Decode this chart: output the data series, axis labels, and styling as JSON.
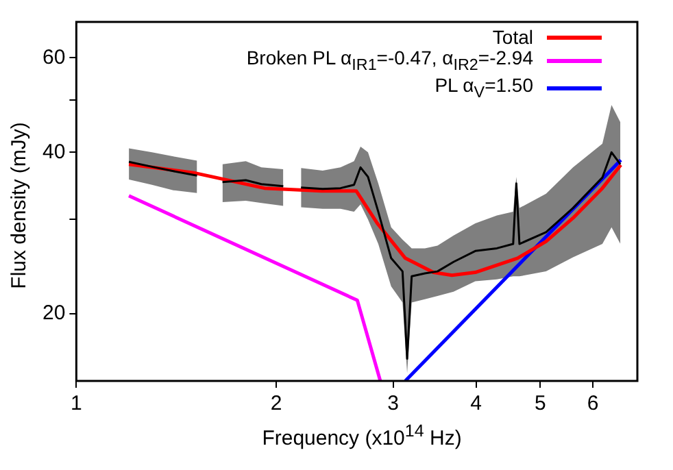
{
  "chart_data": {
    "type": "line",
    "xlabel": "Frequency (x10$^{14}$ Hz)",
    "ylabel": "Flux density (mJy)",
    "log": "xy",
    "xlim": [
      1,
      7
    ],
    "xticks": [
      1,
      2,
      3,
      4,
      5,
      6
    ],
    "ylim": [
      15,
      70
    ],
    "yticks": [
      20,
      {
        "value": 30,
        "label": null
      },
      40,
      {
        "value": 50,
        "label": null
      },
      60
    ],
    "grid": false,
    "legend": "top right",
    "marker": "none",
    "line_style": "solid",
    "series": [
      {
        "color": "#000000",
        "x": [
          1.2,
          1.3,
          1.4,
          1.52,
          1.58,
          1.66,
          1.8,
          1.9,
          2.05,
          2.12,
          2.18,
          2.35,
          2.5,
          2.62,
          2.68,
          2.75,
          2.85,
          2.98,
          3.1,
          3.15,
          3.2,
          3.35,
          3.5,
          3.7,
          3.99,
          4.3,
          4.55,
          4.6,
          4.65,
          5.1,
          5.6,
          6.2,
          6.4,
          6.6
        ],
        "values": [
          38.4,
          37.6,
          36.9,
          36.2,
          null,
          35.2,
          35.5,
          34.9,
          34.6,
          null,
          34.4,
          34.2,
          34.3,
          34.8,
          37.5,
          36,
          31,
          25.4,
          24,
          16.5,
          23.5,
          23.8,
          24,
          25,
          26.2,
          26.5,
          27,
          35,
          27,
          28.4,
          31.5,
          35.9,
          40,
          38
        ],
        "lower": [
          35.6,
          34.8,
          34,
          33.6,
          null,
          32.3,
          32.5,
          32.2,
          31.8,
          null,
          31.6,
          31.4,
          31.4,
          31,
          32,
          30,
          27,
          22.5,
          21,
          15.5,
          21,
          21.3,
          21.6,
          22,
          23,
          23.2,
          23.5,
          23.5,
          23.5,
          24,
          25.5,
          27,
          29,
          27
        ],
        "upper": [
          40.7,
          40,
          39.3,
          38.6,
          null,
          38,
          38.5,
          37.5,
          37.2,
          null,
          37.4,
          37,
          37.5,
          38.5,
          41,
          40,
          35,
          29,
          27.5,
          27,
          26.5,
          26.5,
          26.8,
          28,
          29.5,
          30.5,
          31,
          36,
          31.5,
          33.5,
          37.5,
          41.5,
          49,
          45.5
        ]
      },
      {
        "name": "Total",
        "color": "#ff0000",
        "x": [
          1.2,
          1.51,
          1.92,
          2.34,
          2.64,
          2.84,
          3.13,
          3.45,
          3.68,
          3.99,
          4.62,
          5.1,
          5.62,
          6.2,
          6.61
        ],
        "values": [
          38,
          36.6,
          34.3,
          33.9,
          33.9,
          29.5,
          25.4,
          23.9,
          23.6,
          23.9,
          25.4,
          27.3,
          30.3,
          34.3,
          37.9
        ]
      },
      {
        "name": "Broken PL α$_{IR1}$=-0.47, α$_{IR2}$=-2.94",
        "color": "#ff00ff",
        "x": [
          1.2,
          2.65,
          2.87
        ],
        "values": [
          33.2,
          21.2,
          15
        ]
      },
      {
        "name": "PL α$_{V}$=1.50",
        "color": "#0000ff",
        "x": [
          3.13,
          6.61
        ],
        "values": [
          15,
          38.7
        ]
      }
    ]
  }
}
